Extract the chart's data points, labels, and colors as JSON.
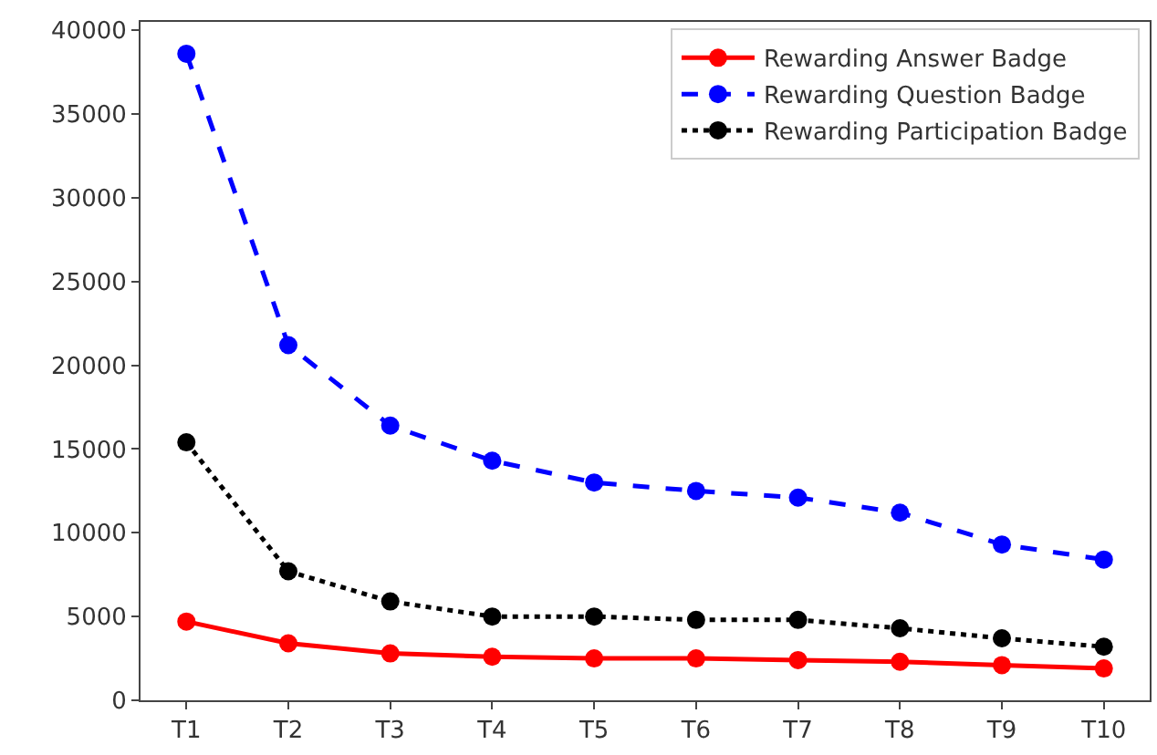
{
  "chart_data": {
    "type": "line",
    "categories": [
      "T1",
      "T2",
      "T3",
      "T4",
      "T5",
      "T6",
      "T7",
      "T8",
      "T9",
      "T10"
    ],
    "ylim": [
      0,
      40500
    ],
    "yticks": [
      0,
      5000,
      10000,
      15000,
      20000,
      25000,
      30000,
      35000,
      40000
    ],
    "legend": "top right",
    "marker": "circle",
    "series": [
      {
        "name": "Rewarding Answer Badge",
        "color": "#ff0000",
        "line_style": "solid",
        "values": [
          4700,
          3400,
          2800,
          2600,
          2500,
          2500,
          2400,
          2300,
          2100,
          1900
        ]
      },
      {
        "name": "Rewarding Question Badge",
        "color": "#0000ff",
        "line_style": "dashed",
        "values": [
          38600,
          21200,
          16400,
          14300,
          13000,
          12500,
          12100,
          11200,
          9300,
          8400
        ]
      },
      {
        "name": "Rewarding Participation Badge",
        "color": "#000000",
        "line_style": "dotted",
        "values": [
          15400,
          7700,
          5900,
          5000,
          5000,
          4800,
          4800,
          4300,
          3700,
          3200
        ]
      }
    ]
  }
}
